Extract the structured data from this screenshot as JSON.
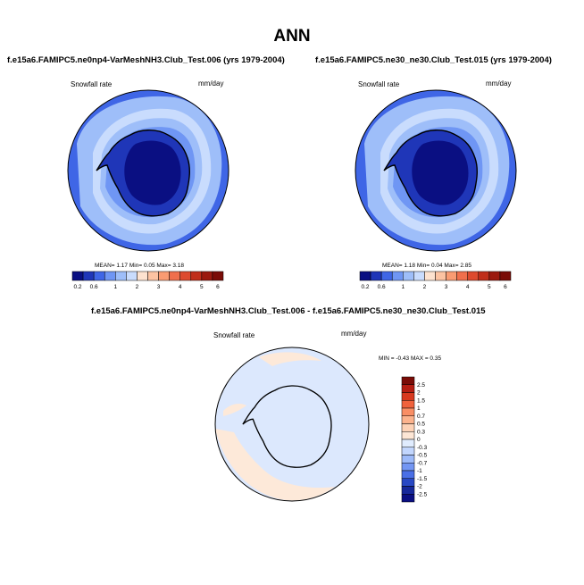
{
  "figure": {
    "title": "ANN"
  },
  "panels": [
    {
      "id": "test",
      "title": "f.e15a6.FAMIPC5.ne0np4-VarMeshNH3.Club_Test.006 (yrs 1979-2004)",
      "variable": "Snowfall rate",
      "units": "mm/day",
      "stats": {
        "mean_label": "MEAN=",
        "mean": "1.17",
        "min_label": "Min=",
        "min": "0.05",
        "max_label": "Max=",
        "max": "3.18"
      }
    },
    {
      "id": "control",
      "title": "f.e15a6.FAMIPC5.ne30_ne30.Club_Test.015 (yrs 1979-2004)",
      "variable": "Snowfall rate",
      "units": "mm/day",
      "stats": {
        "mean_label": "MEAN=",
        "mean": "1.18",
        "min_label": "Min=",
        "min": "0.04",
        "max_label": "Max=",
        "max": "2.85"
      }
    },
    {
      "id": "difference",
      "title": "f.e15a6.FAMIPC5.ne0np4-VarMeshNH3.Club_Test.006 - f.e15a6.FAMIPC5.ne30_ne30.Club_Test.015",
      "variable": "Snowfall rate",
      "units": "mm/day",
      "stats_text": "MIN = -0.43 MAX =   0.35"
    }
  ],
  "colorbar_main": {
    "labels": [
      "0.2",
      "0.6",
      "1",
      "2",
      "3",
      "4",
      "5",
      "6"
    ],
    "colors": [
      "#0a0f82",
      "#1f36b8",
      "#3f66e6",
      "#6f96f4",
      "#9ebef9",
      "#c9dcfd",
      "#fde2cf",
      "#fcc3a2",
      "#f99b72",
      "#f06f4c",
      "#dd4a2e",
      "#c02e1a",
      "#9b1a0f",
      "#7a0c07"
    ]
  },
  "colorbar_diff": {
    "labels": [
      "2.5",
      "2",
      "1.5",
      "1",
      "0.7",
      "0.5",
      "0.3",
      "0",
      "-0.3",
      "-0.5",
      "-0.7",
      "-1",
      "-1.5",
      "-2",
      "-2.5"
    ],
    "colors": [
      "#7a0c07",
      "#b51d12",
      "#d8391f",
      "#f0623c",
      "#f98e64",
      "#fcb38d",
      "#fdd2b6",
      "#fde6d5",
      "#e0ecfe",
      "#c2d6fd",
      "#9dbaf9",
      "#7396f3",
      "#4a6fe6",
      "#2848c4",
      "#16289a",
      "#0a0f82"
    ]
  },
  "map": {
    "region": "Antarctica (south polar stereographic)",
    "colors": {
      "interior_low": "#0a0f82",
      "inland": "#1f36b8",
      "coast": "#3f66e6",
      "ocean_mid": "#6f96f4",
      "ocean_light": "#9ebef9",
      "ocean_pale": "#c9dcfd",
      "diff_neg": "#dce8fd",
      "diff_pos": "#fde9d9"
    }
  }
}
